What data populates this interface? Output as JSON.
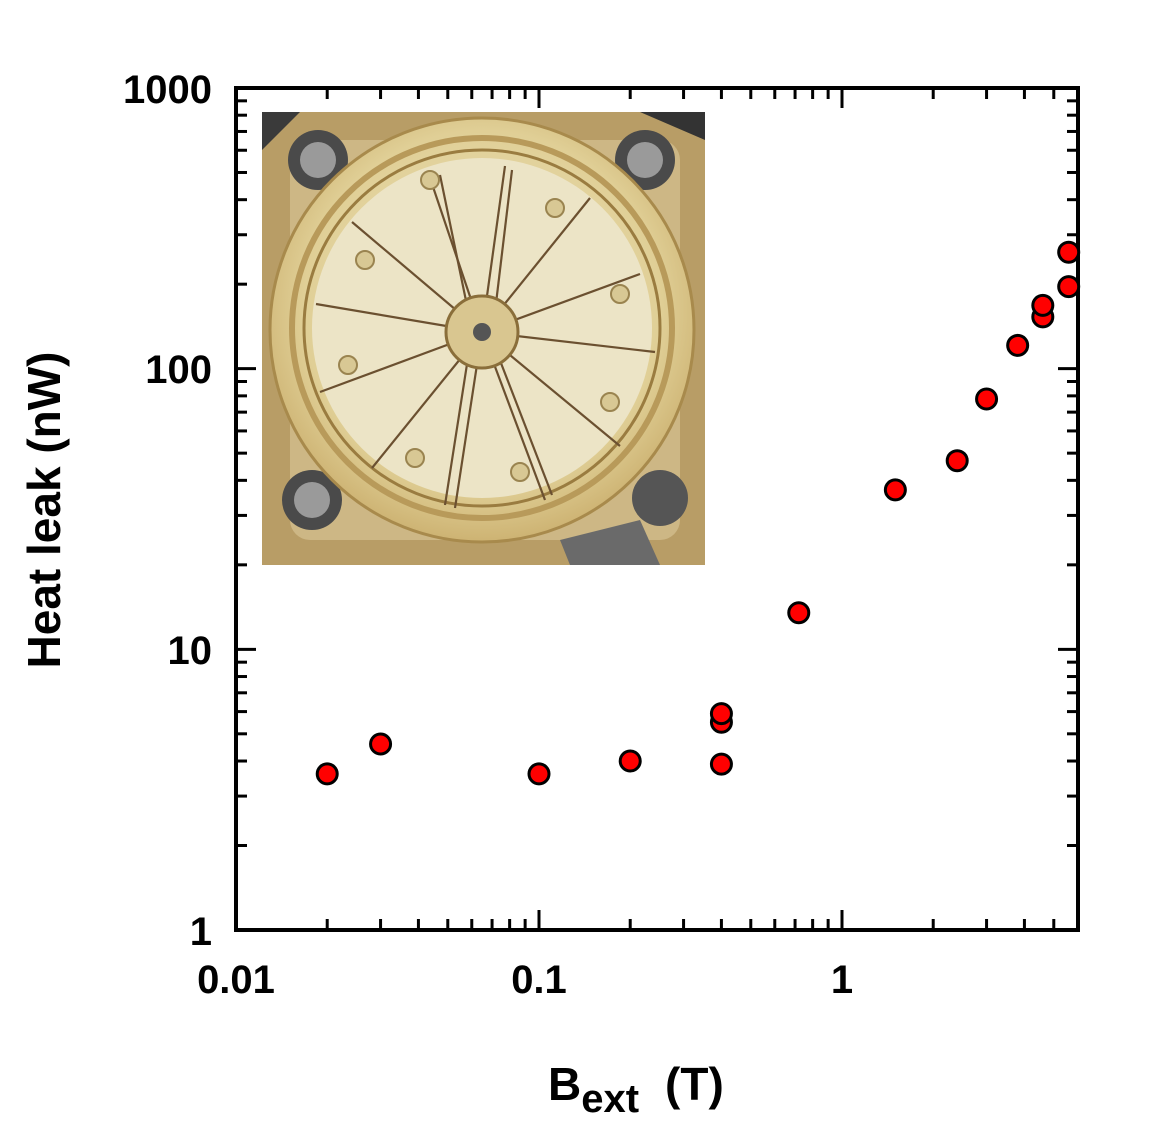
{
  "chart_data": {
    "type": "scatter",
    "xlabel": "B",
    "xlabel_subscript": "ext",
    "xlabel_unit": "(T)",
    "ylabel": "Heat leak  (nW)",
    "x_scale": "log",
    "y_scale": "log",
    "xlim": [
      0.01,
      5.6
    ],
    "ylim": [
      1,
      1000
    ],
    "x_tick_labels": [
      "0.01",
      "0.1",
      "1"
    ],
    "y_tick_labels": [
      "1",
      "10",
      "100",
      "1000"
    ],
    "grid": false,
    "legend": "none",
    "marker_color": "#ff0000",
    "marker_edge_color": "#000000",
    "inset": "photograph of a circular gold-coloured holder with radial wire spokes",
    "series": [
      {
        "points": [
          {
            "x": 0.02,
            "y": 3.6
          },
          {
            "x": 0.03,
            "y": 4.6
          },
          {
            "x": 0.1,
            "y": 3.6
          },
          {
            "x": 0.2,
            "y": 4.0
          },
          {
            "x": 0.4,
            "y": 3.9
          },
          {
            "x": 0.4,
            "y": 5.5
          },
          {
            "x": 0.4,
            "y": 5.9
          },
          {
            "x": 0.72,
            "y": 13.5
          },
          {
            "x": 1.5,
            "y": 37
          },
          {
            "x": 2.4,
            "y": 47
          },
          {
            "x": 3.0,
            "y": 78
          },
          {
            "x": 3.8,
            "y": 121
          },
          {
            "x": 4.6,
            "y": 153
          },
          {
            "x": 4.6,
            "y": 168
          },
          {
            "x": 5.6,
            "y": 196
          },
          {
            "x": 5.6,
            "y": 260
          }
        ]
      }
    ]
  }
}
